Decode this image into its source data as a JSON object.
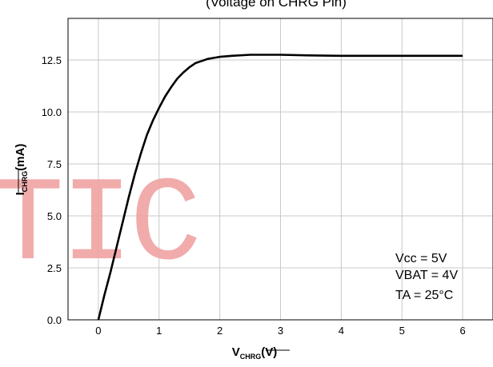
{
  "title_fragment": "(Voltage on CHRG Pin)",
  "watermark": "TIC",
  "chart_data": {
    "type": "line",
    "xlabel": {
      "main": "V",
      "sub": "CHRG",
      "unit": "(V)"
    },
    "ylabel": {
      "main": "I",
      "sub": "CHRG",
      "unit": "(mA)"
    },
    "xlim": [
      -0.5,
      6.5
    ],
    "ylim": [
      0,
      14.5
    ],
    "xticks": [
      0,
      1,
      2,
      3,
      4,
      5,
      6
    ],
    "xtick_labels": [
      "0",
      "1",
      "2",
      "3",
      "4",
      "5",
      "6"
    ],
    "yticks": [
      0,
      2.5,
      5,
      7.5,
      10,
      12.5
    ],
    "ytick_labels": [
      "0.0",
      "2.5",
      "5.0",
      "7.5",
      "10.0",
      "12.5"
    ],
    "grid": true,
    "series": [
      {
        "x": [
          0,
          0.1,
          0.2,
          0.3,
          0.4,
          0.5,
          0.6,
          0.7,
          0.8,
          0.9,
          1.0,
          1.1,
          1.2,
          1.3,
          1.4,
          1.5,
          1.6,
          1.7,
          1.8,
          1.9,
          2.0,
          2.2,
          2.5,
          3.0,
          3.5,
          4.0,
          4.5,
          5.0,
          5.5,
          6.0
        ],
        "y": [
          0,
          1.2,
          2.3,
          3.5,
          4.7,
          5.9,
          7.0,
          8.0,
          8.9,
          9.6,
          10.2,
          10.75,
          11.2,
          11.6,
          11.9,
          12.15,
          12.35,
          12.45,
          12.55,
          12.6,
          12.65,
          12.7,
          12.75,
          12.75,
          12.72,
          12.7,
          12.7,
          12.7,
          12.7,
          12.7
        ]
      }
    ],
    "annotations": [
      "Vcc = 5V",
      "VBAT = 4V",
      "TA = 25°C"
    ]
  }
}
